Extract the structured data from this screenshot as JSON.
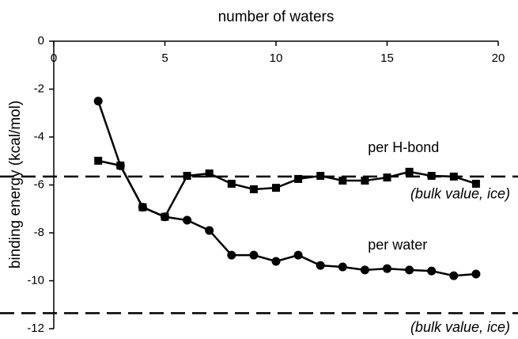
{
  "chart_data": {
    "type": "line",
    "xlabel": "number of waters",
    "ylabel": "binding energy (kcal/mol)",
    "x": [
      2,
      3,
      4,
      5,
      6,
      7,
      8,
      9,
      10,
      11,
      12,
      13,
      14,
      15,
      16,
      17,
      18,
      19
    ],
    "series": [
      {
        "name": "per water",
        "color": "#000000",
        "marker": "circle",
        "values": [
          -2.5,
          -5.2,
          -6.93,
          -7.33,
          -7.47,
          -7.9,
          -8.93,
          -8.93,
          -9.19,
          -8.93,
          -9.36,
          -9.42,
          -9.55,
          -9.49,
          -9.55,
          -9.59,
          -9.79,
          -9.72
        ]
      },
      {
        "name": "per H-bond",
        "color": "#000000",
        "marker": "square",
        "values": [
          -4.99,
          -5.19,
          -6.93,
          -7.33,
          -5.62,
          -5.52,
          -5.95,
          -6.18,
          -6.12,
          -5.75,
          -5.62,
          -5.82,
          -5.82,
          -5.69,
          -5.45,
          -5.62,
          -5.65,
          -5.95
        ]
      }
    ],
    "reference_lines": [
      {
        "value": -5.65,
        "label": "(bulk value, ice)"
      },
      {
        "value": -11.35,
        "label": "(bulk value, ice)"
      }
    ],
    "xlim": [
      0,
      20
    ],
    "xticks": [
      0,
      5,
      10,
      15,
      20
    ],
    "ylim": [
      -12,
      0
    ],
    "yticks": [
      0,
      -2,
      -4,
      -6,
      -8,
      -10,
      -12
    ],
    "xaxis_position": "top",
    "grid": false
  }
}
